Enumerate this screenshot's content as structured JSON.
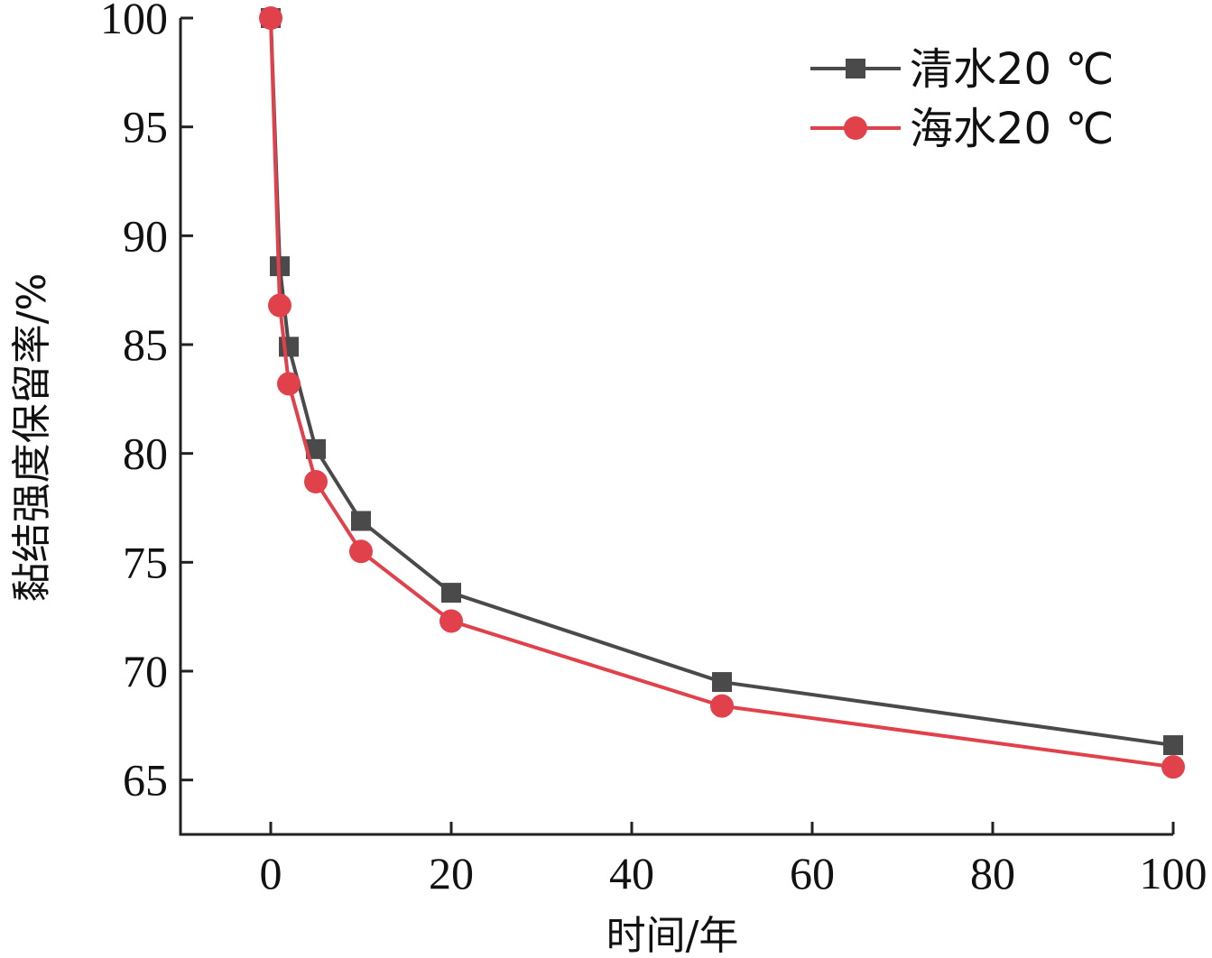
{
  "chart_data": {
    "type": "line",
    "xlabel": "时间/年",
    "ylabel": "黏结强度保留率/%",
    "xlim": [
      -10,
      100
    ],
    "ylim": [
      62.5,
      100
    ],
    "xticks": [
      0,
      20,
      40,
      60,
      80,
      100
    ],
    "yticks": [
      65,
      70,
      75,
      80,
      85,
      90,
      95,
      100
    ],
    "grid": false,
    "legend_position": "top-right",
    "series": [
      {
        "name": "清水20 ℃",
        "color": "#4a4a4a",
        "marker": "square",
        "x": [
          0,
          1,
          2,
          5,
          10,
          20,
          50,
          100
        ],
        "y": [
          100,
          88.6,
          84.9,
          80.2,
          76.9,
          73.6,
          69.5,
          66.6
        ]
      },
      {
        "name": "海水20 ℃",
        "color": "#e0414b",
        "marker": "circle",
        "x": [
          0,
          1,
          2,
          5,
          10,
          20,
          50,
          100
        ],
        "y": [
          100,
          86.8,
          83.2,
          78.7,
          75.5,
          72.3,
          68.4,
          65.6
        ]
      }
    ]
  }
}
